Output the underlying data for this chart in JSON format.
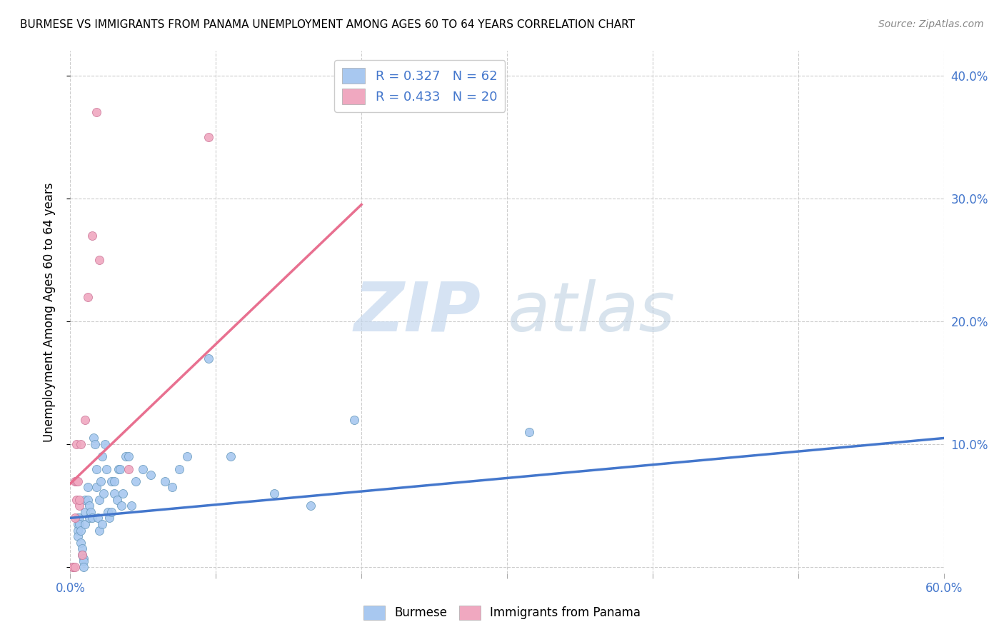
{
  "title": "BURMESE VS IMMIGRANTS FROM PANAMA UNEMPLOYMENT AMONG AGES 60 TO 64 YEARS CORRELATION CHART",
  "source": "Source: ZipAtlas.com",
  "ylabel": "Unemployment Among Ages 60 to 64 years",
  "xlim": [
    0.0,
    0.6
  ],
  "ylim": [
    -0.005,
    0.42
  ],
  "xticks": [
    0.0,
    0.1,
    0.2,
    0.3,
    0.4,
    0.5,
    0.6
  ],
  "xtick_labels": [
    "0.0%",
    "",
    "",
    "",
    "",
    "",
    "60.0%"
  ],
  "yticks": [
    0.0,
    0.1,
    0.2,
    0.3,
    0.4
  ],
  "ytick_labels_right": [
    "",
    "10.0%",
    "20.0%",
    "30.0%",
    "40.0%"
  ],
  "grid_color": "#cccccc",
  "background_color": "#ffffff",
  "watermark_zip": "ZIP",
  "watermark_atlas": "atlas",
  "legend1_label": "R = 0.327   N = 62",
  "legend2_label": "R = 0.433   N = 20",
  "legend1_color": "#a8c8f0",
  "legend2_color": "#f0a8c0",
  "line1_color": "#4477cc",
  "line2_color": "#e87090",
  "scatter1_color": "#a8c8f0",
  "scatter2_color": "#f0a8c0",
  "scatter_edge1": "#6699bb",
  "scatter_edge2": "#cc7799",
  "marker_size": 75,
  "blue_scatter_x": [
    0.005,
    0.005,
    0.005,
    0.005,
    0.006,
    0.006,
    0.007,
    0.007,
    0.008,
    0.008,
    0.009,
    0.009,
    0.009,
    0.01,
    0.01,
    0.01,
    0.012,
    0.012,
    0.013,
    0.013,
    0.014,
    0.015,
    0.016,
    0.017,
    0.018,
    0.018,
    0.019,
    0.02,
    0.02,
    0.021,
    0.022,
    0.022,
    0.023,
    0.024,
    0.025,
    0.026,
    0.027,
    0.028,
    0.028,
    0.03,
    0.03,
    0.032,
    0.033,
    0.034,
    0.035,
    0.036,
    0.038,
    0.04,
    0.042,
    0.045,
    0.05,
    0.055,
    0.065,
    0.07,
    0.075,
    0.08,
    0.095,
    0.11,
    0.14,
    0.165,
    0.195,
    0.315
  ],
  "blue_scatter_y": [
    0.04,
    0.035,
    0.03,
    0.025,
    0.04,
    0.035,
    0.03,
    0.02,
    0.015,
    0.01,
    0.007,
    0.005,
    0.0,
    0.055,
    0.045,
    0.035,
    0.065,
    0.055,
    0.05,
    0.04,
    0.045,
    0.04,
    0.105,
    0.1,
    0.08,
    0.065,
    0.04,
    0.055,
    0.03,
    0.07,
    0.09,
    0.035,
    0.06,
    0.1,
    0.08,
    0.045,
    0.04,
    0.07,
    0.045,
    0.07,
    0.06,
    0.055,
    0.08,
    0.08,
    0.05,
    0.06,
    0.09,
    0.09,
    0.05,
    0.07,
    0.08,
    0.075,
    0.07,
    0.065,
    0.08,
    0.09,
    0.17,
    0.09,
    0.06,
    0.05,
    0.12,
    0.11
  ],
  "pink_scatter_x": [
    0.002,
    0.002,
    0.003,
    0.003,
    0.003,
    0.004,
    0.004,
    0.004,
    0.005,
    0.006,
    0.006,
    0.007,
    0.008,
    0.01,
    0.012,
    0.015,
    0.018,
    0.02,
    0.04,
    0.095
  ],
  "pink_scatter_y": [
    0.0,
    0.0,
    0.0,
    0.04,
    0.07,
    0.055,
    0.07,
    0.1,
    0.07,
    0.05,
    0.055,
    0.1,
    0.01,
    0.12,
    0.22,
    0.27,
    0.37,
    0.25,
    0.08,
    0.35
  ],
  "blue_line_x": [
    0.0,
    0.6
  ],
  "blue_line_y": [
    0.04,
    0.105
  ],
  "pink_line_x": [
    0.0,
    0.2
  ],
  "pink_line_y": [
    0.068,
    0.295
  ],
  "bottom_legend": [
    "Burmese",
    "Immigrants from Panama"
  ]
}
